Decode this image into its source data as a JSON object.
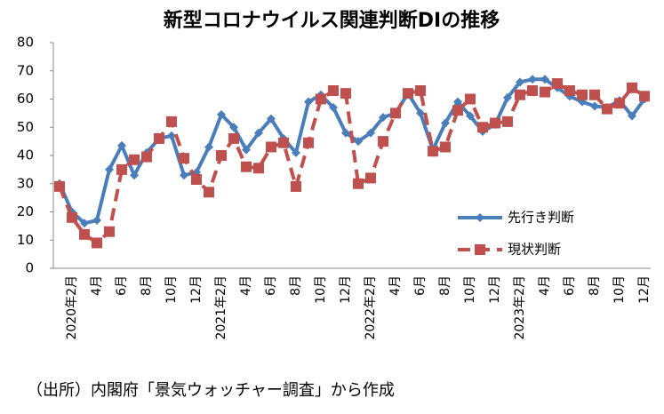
{
  "chart_data": {
    "type": "line",
    "title": "新型コロナウイルス関連判断DIの推移",
    "source": "（出所）内閣府「景気ウォッチャー調査」から作成",
    "categories": [
      null,
      "2020年2月",
      null,
      "4月",
      null,
      "6月",
      null,
      "8月",
      null,
      "10月",
      null,
      "12月",
      null,
      "2021年2月",
      null,
      "4月",
      null,
      "6月",
      null,
      "8月",
      null,
      "10月",
      null,
      "12月",
      null,
      "2022年2月",
      null,
      "4月",
      null,
      "6月",
      null,
      "8月",
      null,
      "10月",
      null,
      "12月",
      null,
      "2023年2月",
      null,
      "4月",
      null,
      "6月",
      null,
      "8月",
      null,
      "10月",
      null,
      "12月"
    ],
    "series": [
      {
        "name": "先行き判断",
        "color": "#4a7ebb",
        "dashed": false,
        "marker": "diamond",
        "values": [
          30,
          20,
          16,
          17,
          35,
          43.5,
          33,
          41,
          46,
          47,
          33,
          34,
          43,
          54.5,
          50,
          42,
          48,
          53,
          46,
          41,
          59,
          61.5,
          57,
          48,
          45,
          48,
          53.5,
          55,
          62,
          55,
          42,
          51.5,
          59,
          54,
          48.5,
          51,
          60.5,
          66,
          67,
          67,
          64,
          61,
          59,
          57.5,
          57,
          59.5,
          54,
          60
        ]
      },
      {
        "name": "現状判断",
        "color": "#c0504d",
        "dashed": true,
        "marker": "square",
        "values": [
          29,
          18,
          12,
          9,
          13,
          35,
          38.5,
          39.5,
          46,
          52,
          39,
          31.5,
          27,
          40,
          46,
          36,
          35.5,
          43,
          44.5,
          29,
          44.5,
          60,
          63,
          62,
          30,
          32,
          45,
          55,
          62,
          63,
          41.5,
          43,
          56,
          60,
          50,
          51.5,
          52,
          61.5,
          63,
          62.5,
          65.5,
          63,
          61.5,
          61.5,
          56.5,
          58.5,
          64,
          61
        ]
      }
    ],
    "ylim": [
      0,
      80
    ],
    "yticks": [
      0,
      10,
      20,
      30,
      40,
      50,
      60,
      70,
      80
    ],
    "grid": false,
    "legend": "lower right"
  }
}
